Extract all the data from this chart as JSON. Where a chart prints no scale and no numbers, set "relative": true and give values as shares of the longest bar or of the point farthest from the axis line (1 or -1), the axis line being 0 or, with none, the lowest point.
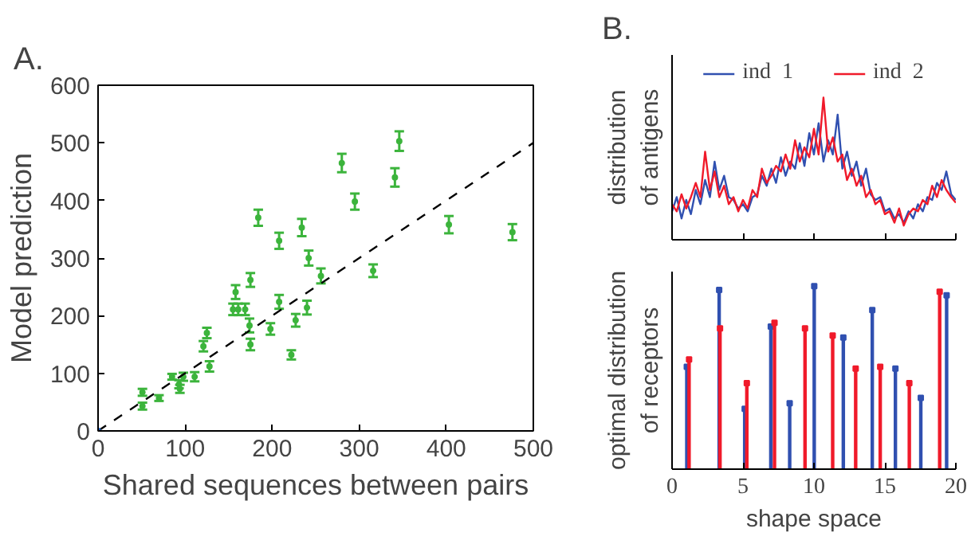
{
  "chart_data": [
    {
      "type": "scatter",
      "title": "A.",
      "xlabel": "Shared sequences between pairs",
      "ylabel": "Model prediction",
      "xlim": [
        0,
        500
      ],
      "ylim": [
        0,
        600
      ],
      "xticks": [
        0,
        100,
        200,
        300,
        400,
        500
      ],
      "yticks": [
        0,
        100,
        200,
        300,
        400,
        500,
        600
      ],
      "grid": false,
      "legend": false,
      "marker": "circle",
      "series": [
        {
          "color": "#3cb43c",
          "x": [
            51,
            51,
            70,
            85,
            93,
            94,
            98,
            111,
            128,
            121,
            125,
            158,
            155,
            161,
            169,
            174,
            175,
            175,
            184,
            198,
            208,
            208,
            222,
            227,
            234,
            240,
            242,
            256,
            280,
            295,
            316,
            341,
            346,
            403,
            476
          ],
          "values": [
            67,
            43,
            57,
            94,
            81,
            73,
            94,
            94,
            112,
            147,
            170,
            241,
            211,
            211,
            211,
            183,
            150,
            262,
            370,
            177,
            224,
            330,
            132,
            192,
            353,
            214,
            300,
            269,
            465,
            398,
            278,
            440,
            503,
            358,
            345
          ],
          "errors": [
            6,
            6,
            5,
            5,
            7,
            7,
            7,
            8,
            9,
            9,
            9,
            12,
            10,
            10,
            10,
            12,
            10,
            12,
            14,
            10,
            12,
            14,
            8,
            11,
            15,
            12,
            13,
            13,
            16,
            14,
            11,
            16,
            17,
            15,
            14
          ]
        },
        {
          "type": "line",
          "color": "#000000",
          "line_style": "dashed",
          "marker": "none",
          "x": [
            0,
            500
          ],
          "values": [
            0,
            500
          ]
        },
        {
          "color": "#2060c0",
          "x": [
            0
          ],
          "values": [
            0
          ]
        }
      ]
    },
    {
      "type": "line",
      "title": "B.",
      "ylabel": "distribution of antigens",
      "relative": true,
      "xlim": [
        0,
        20
      ],
      "xticks": [
        0,
        5,
        10,
        15,
        20
      ],
      "tick_labels": false,
      "legend": "top",
      "grid": false,
      "series": [
        {
          "name": "ind  1",
          "color": "#3050b0",
          "x": [
            0,
            0.33,
            0.67,
            1,
            1.33,
            1.67,
            2,
            2.33,
            2.67,
            3,
            3.33,
            3.67,
            4,
            4.33,
            4.67,
            5,
            5.33,
            5.67,
            6,
            6.33,
            6.67,
            7,
            7.33,
            7.67,
            8,
            8.33,
            8.67,
            9,
            9.33,
            9.67,
            10,
            10.33,
            10.67,
            11,
            11.33,
            11.67,
            12,
            12.33,
            12.67,
            13,
            13.33,
            13.67,
            14,
            14.33,
            14.67,
            15,
            15.33,
            15.67,
            16,
            16.33,
            16.67,
            17,
            17.33,
            17.67,
            18,
            18.33,
            18.67,
            19,
            19.33,
            19.67,
            20
          ],
          "values": [
            0.2,
            0.3,
            0.15,
            0.28,
            0.18,
            0.35,
            0.25,
            0.42,
            0.3,
            0.55,
            0.35,
            0.45,
            0.3,
            0.28,
            0.22,
            0.25,
            0.2,
            0.3,
            0.32,
            0.45,
            0.38,
            0.5,
            0.4,
            0.58,
            0.45,
            0.55,
            0.5,
            0.68,
            0.52,
            0.75,
            0.6,
            0.82,
            0.55,
            0.7,
            0.6,
            0.88,
            0.5,
            0.62,
            0.45,
            0.55,
            0.38,
            0.5,
            0.32,
            0.28,
            0.3,
            0.2,
            0.22,
            0.15,
            0.18,
            0.12,
            0.2,
            0.15,
            0.25,
            0.2,
            0.3,
            0.28,
            0.4,
            0.35,
            0.48,
            0.32,
            0.28
          ]
        },
        {
          "name": "ind  2",
          "color": "#f01a2a",
          "x": [
            0,
            0.33,
            0.67,
            1,
            1.33,
            1.67,
            2,
            2.33,
            2.67,
            3,
            3.33,
            3.67,
            4,
            4.33,
            4.67,
            5,
            5.33,
            5.67,
            6,
            6.33,
            6.67,
            7,
            7.33,
            7.67,
            8,
            8.33,
            8.67,
            9,
            9.33,
            9.67,
            10,
            10.33,
            10.67,
            11,
            11.33,
            11.67,
            12,
            12.33,
            12.67,
            13,
            13.33,
            13.67,
            14,
            14.33,
            14.67,
            15,
            15.33,
            15.67,
            16,
            16.33,
            16.67,
            17,
            17.33,
            17.67,
            18,
            18.33,
            18.67,
            19,
            19.33,
            19.67,
            20
          ],
          "values": [
            0.25,
            0.2,
            0.32,
            0.22,
            0.3,
            0.4,
            0.3,
            0.62,
            0.35,
            0.48,
            0.3,
            0.38,
            0.25,
            0.3,
            0.2,
            0.28,
            0.22,
            0.35,
            0.3,
            0.5,
            0.4,
            0.45,
            0.52,
            0.48,
            0.6,
            0.5,
            0.7,
            0.55,
            0.65,
            0.58,
            0.78,
            0.6,
            1.0,
            0.62,
            0.72,
            0.55,
            0.6,
            0.42,
            0.5,
            0.38,
            0.45,
            0.3,
            0.35,
            0.25,
            0.28,
            0.18,
            0.2,
            0.12,
            0.22,
            0.1,
            0.18,
            0.22,
            0.2,
            0.28,
            0.25,
            0.38,
            0.3,
            0.42,
            0.35,
            0.3,
            0.26
          ]
        }
      ]
    },
    {
      "type": "lollipop",
      "xlabel": "shape space",
      "ylabel": "optimal distribution of receptors",
      "relative": true,
      "xlim": [
        0,
        20
      ],
      "xticks": [
        0,
        5,
        10,
        15,
        20
      ],
      "tick_labels": "x",
      "grid": false,
      "marker": "square",
      "series": [
        {
          "color": "#3050b0",
          "x": [
            1.04,
            3.32,
            5.12,
            6.96,
            8.29,
            10.02,
            12.07,
            14.11,
            15.74,
            17.53,
            19.35
          ],
          "values": [
            0.56,
            0.98,
            0.33,
            0.78,
            0.36,
            1.0,
            0.72,
            0.87,
            0.55,
            0.39,
            0.95
          ]
        },
        {
          "color": "#f01a2a",
          "x": [
            1.2,
            3.38,
            5.27,
            7.22,
            9.37,
            11.32,
            12.94,
            14.67,
            16.72,
            18.86
          ],
          "values": [
            0.6,
            0.77,
            0.47,
            0.8,
            0.77,
            0.73,
            0.55,
            0.56,
            0.47,
            0.97
          ]
        }
      ]
    }
  ]
}
